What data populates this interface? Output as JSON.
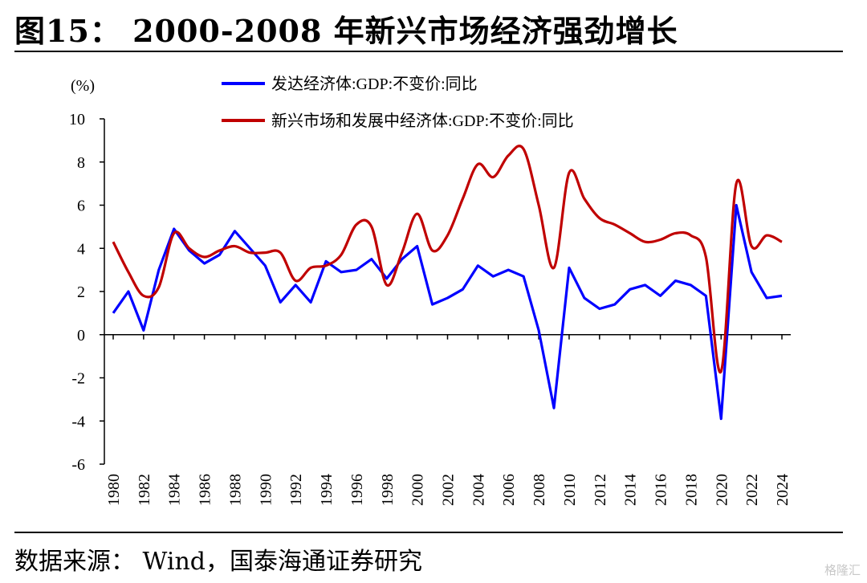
{
  "figure": {
    "title": "图15：  2000-2008 年新兴市场经济强劲增长",
    "source": "数据来源：  Wind，国泰海通证券研究",
    "watermark": "格隆汇"
  },
  "chart_data": {
    "type": "line",
    "ylabel": "(%)",
    "ylim": [
      -6,
      10
    ],
    "yticks": [
      -6,
      -4,
      -2,
      0,
      2,
      4,
      6,
      8,
      10
    ],
    "xlim": [
      1980,
      2024
    ],
    "xticks": [
      "1980",
      "1982",
      "1984",
      "1986",
      "1988",
      "1990",
      "1992",
      "1994",
      "1996",
      "1998",
      "2000",
      "2002",
      "2004",
      "2006",
      "2008",
      "2010",
      "2012",
      "2014",
      "2016",
      "2018",
      "2020",
      "2022",
      "2024"
    ],
    "grid": false,
    "legend": "top",
    "x": [
      1980,
      1981,
      1982,
      1983,
      1984,
      1985,
      1986,
      1987,
      1988,
      1989,
      1990,
      1991,
      1992,
      1993,
      1994,
      1995,
      1996,
      1997,
      1998,
      1999,
      2000,
      2001,
      2002,
      2003,
      2004,
      2005,
      2006,
      2007,
      2008,
      2009,
      2010,
      2011,
      2012,
      2013,
      2014,
      2015,
      2016,
      2017,
      2018,
      2019,
      2020,
      2021,
      2022,
      2023,
      2024
    ],
    "series": [
      {
        "name": "发达经济体:GDP:不变价:同比",
        "color": "#0000ff",
        "values": [
          1.0,
          2.0,
          0.2,
          3.0,
          4.9,
          3.9,
          3.3,
          3.7,
          4.8,
          4.0,
          3.2,
          1.5,
          2.3,
          1.5,
          3.4,
          2.9,
          3.0,
          3.5,
          2.6,
          3.5,
          4.1,
          1.4,
          1.7,
          2.1,
          3.2,
          2.7,
          3.0,
          2.7,
          0.2,
          -3.4,
          3.1,
          1.7,
          1.2,
          1.4,
          2.1,
          2.3,
          1.8,
          2.5,
          2.3,
          1.8,
          -3.9,
          6.0,
          2.9,
          1.7,
          1.8
        ]
      },
      {
        "name": "新兴市场和发展中经济体:GDP:不变价:同比",
        "color": "#c00000",
        "values": [
          4.3,
          2.9,
          1.8,
          2.2,
          4.7,
          4.0,
          3.6,
          3.9,
          4.1,
          3.8,
          3.8,
          3.8,
          2.5,
          3.1,
          3.2,
          3.7,
          5.1,
          5.0,
          2.3,
          3.8,
          5.6,
          3.9,
          4.6,
          6.3,
          7.9,
          7.3,
          8.3,
          8.6,
          6.0,
          3.1,
          7.5,
          6.3,
          5.4,
          5.1,
          4.7,
          4.3,
          4.4,
          4.7,
          4.6,
          3.6,
          -1.7,
          7.0,
          4.1,
          4.6,
          4.3
        ]
      }
    ]
  }
}
